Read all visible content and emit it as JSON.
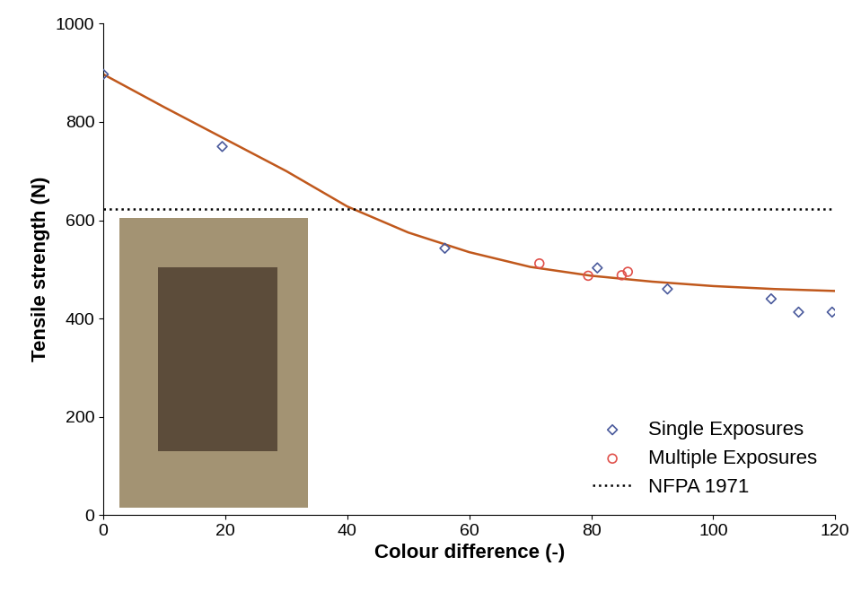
{
  "chart_data": {
    "type": "scatter",
    "x_label": "Colour difference (-)",
    "y_label": "Tensile strength (N)",
    "xlim": [
      0,
      120
    ],
    "xticks": [
      0,
      20,
      40,
      60,
      80,
      100,
      120
    ],
    "ylim": [
      0,
      1000
    ],
    "yticks": [
      0,
      200,
      400,
      600,
      800,
      1000
    ],
    "grid": false,
    "legend": "lower right",
    "series": [
      {
        "type": "line",
        "color": "#c0581c",
        "line_style": "solid",
        "x": [
          0,
          10,
          20,
          30,
          40,
          50,
          60,
          70,
          80,
          90,
          100,
          110,
          120
        ],
        "values": [
          897,
          830,
          765,
          700,
          628,
          575,
          535,
          505,
          487,
          475,
          466,
          460,
          456
        ]
      },
      {
        "name": "Single Exposures",
        "type": "scatter",
        "color": "#4a5a9c",
        "marker": "diamond",
        "x": [
          0,
          19.5,
          56,
          81,
          92.5,
          109.5,
          114,
          119.5
        ],
        "values": [
          897,
          750,
          543,
          503,
          460,
          440,
          413,
          413
        ]
      },
      {
        "name": "Multiple Exposures",
        "type": "scatter",
        "color": "#e0504a",
        "marker": "circle",
        "x": [
          71.5,
          79.5,
          85,
          86
        ],
        "values": [
          512,
          487,
          488,
          495
        ]
      },
      {
        "name": "NFPA 1971",
        "type": "line",
        "color": "#000000",
        "line_style": "dotted",
        "x": [
          0,
          120
        ],
        "values": [
          623,
          623
        ]
      }
    ]
  }
}
